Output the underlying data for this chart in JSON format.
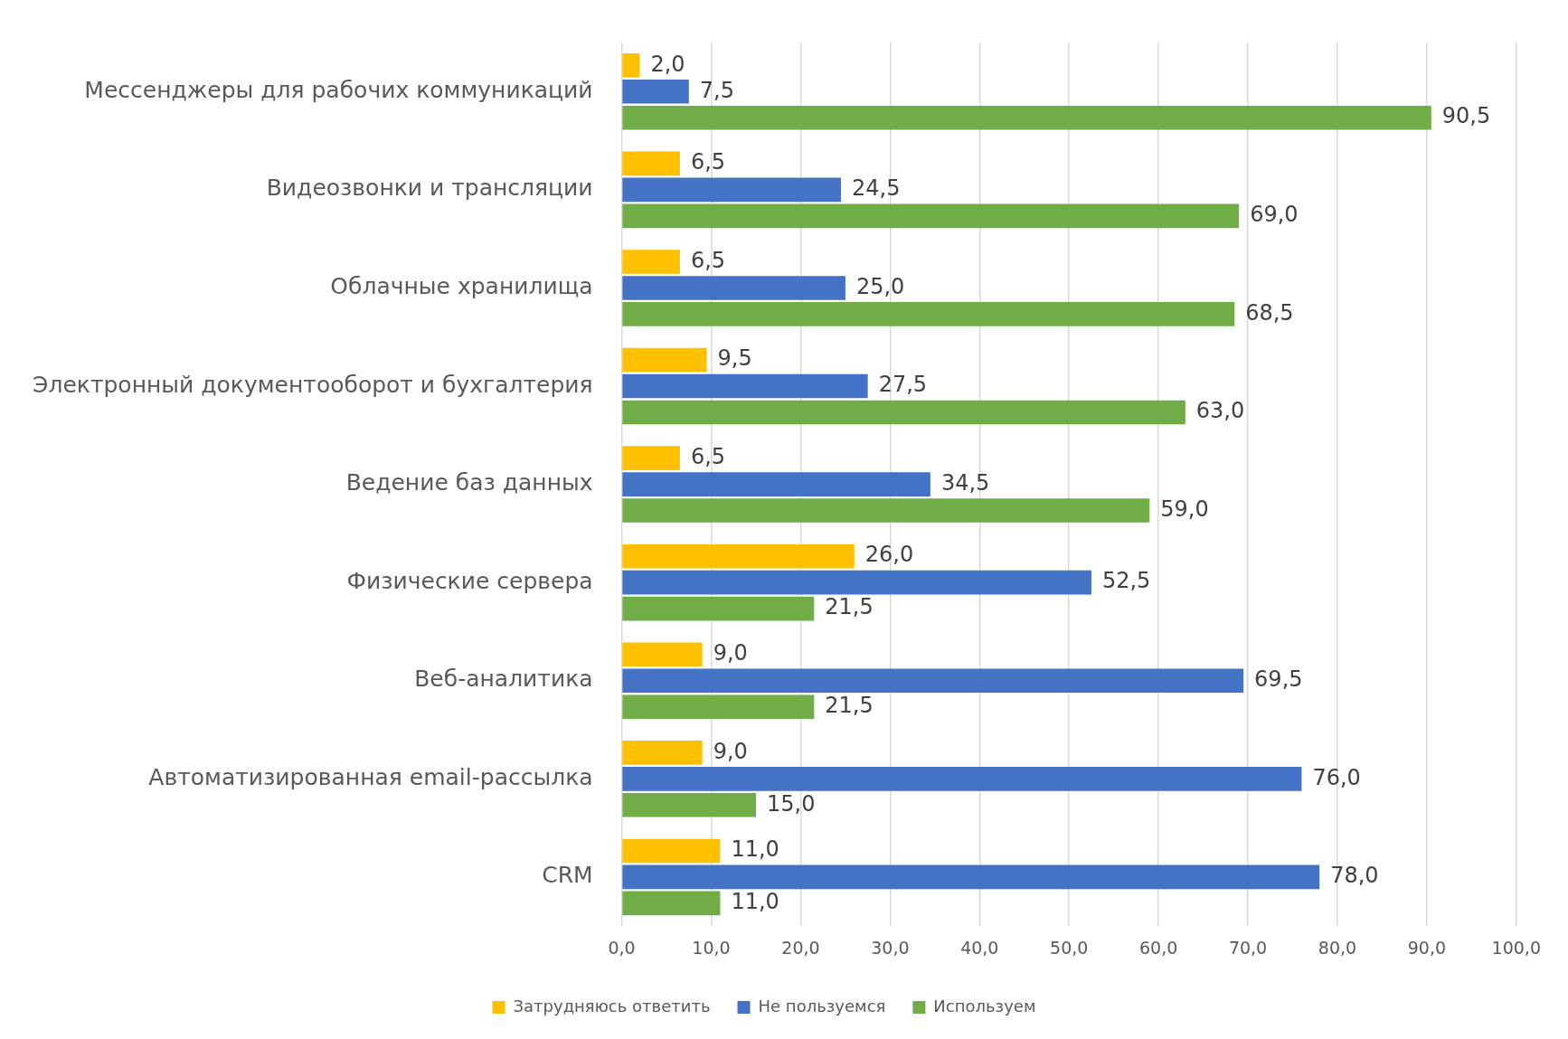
{
  "chart_data": {
    "type": "bar",
    "orientation": "horizontal",
    "categories": [
      "Мессенджеры для рабочих коммуникаций",
      "Видеозвонки и трансляции",
      "Облачные хранилища",
      "Электронный документооборот и бухгалтерия",
      "Ведение баз данных",
      "Физические сервера",
      "Веб-аналитика",
      "Автоматизированная email-рассылка",
      "CRM"
    ],
    "series": [
      {
        "name": "Затрудняюсь ответить",
        "color": "#ffc000",
        "values": [
          2.0,
          6.5,
          6.5,
          9.5,
          6.5,
          26.0,
          9.0,
          9.0,
          11.0
        ],
        "value_labels": [
          "2,0",
          "6,5",
          "6,5",
          "9,5",
          "6,5",
          "26,0",
          "9,0",
          "9,0",
          "11,0"
        ]
      },
      {
        "name": "Не пользуемся",
        "color": "#4472c4",
        "values": [
          7.5,
          24.5,
          25.0,
          27.5,
          34.5,
          52.5,
          69.5,
          76.0,
          78.0
        ],
        "value_labels": [
          "7,5",
          "24,5",
          "25,0",
          "27,5",
          "34,5",
          "52,5",
          "69,5",
          "76,0",
          "78,0"
        ]
      },
      {
        "name": "Используем",
        "color": "#70ad47",
        "values": [
          90.5,
          69.0,
          68.5,
          63.0,
          59.0,
          21.5,
          21.5,
          15.0,
          11.0
        ],
        "value_labels": [
          "90,5",
          "69,0",
          "68,5",
          "63,0",
          "59,0",
          "21,5",
          "21,5",
          "15,0",
          "11,0"
        ]
      }
    ],
    "xlim": [
      0,
      100
    ],
    "xticks": [
      {
        "value": 0,
        "label": "0,0"
      },
      {
        "value": 10,
        "label": "10,0"
      },
      {
        "value": 20,
        "label": "20,0"
      },
      {
        "value": 30,
        "label": "30,0"
      },
      {
        "value": 40,
        "label": "40,0"
      },
      {
        "value": 50,
        "label": "50,0"
      },
      {
        "value": 60,
        "label": "60,0"
      },
      {
        "value": 70,
        "label": "70,0"
      },
      {
        "value": 80,
        "label": "80,0"
      },
      {
        "value": 90,
        "label": "90,0"
      },
      {
        "value": 100,
        "label": "100,0"
      }
    ],
    "grid": "x",
    "legend": "bottom"
  }
}
